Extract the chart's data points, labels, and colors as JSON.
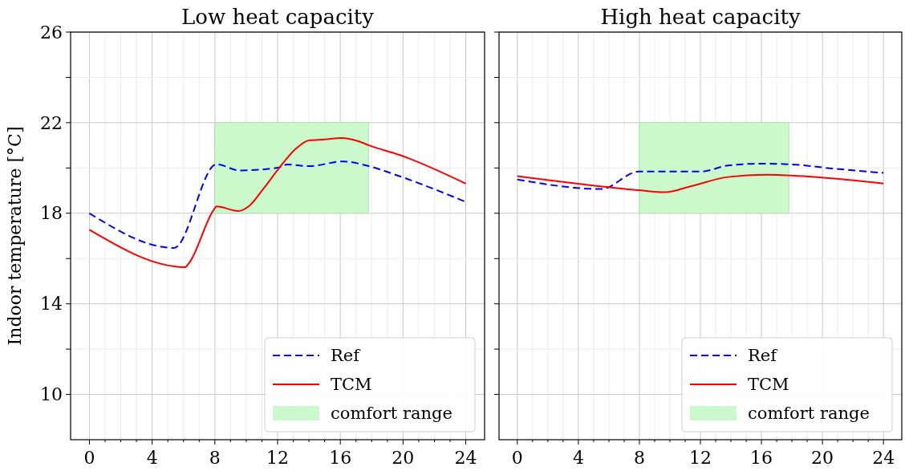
{
  "chart_data": [
    {
      "type": "line",
      "title": "Low heat capacity",
      "ylabel": "Indoor temperature [°C]",
      "xlim": [
        -1.2,
        25.2
      ],
      "ylim": [
        8,
        26
      ],
      "xticks": [
        0,
        {
          "value": 1,
          "label": null
        },
        {
          "value": 2,
          "label": null
        },
        {
          "value": 3,
          "label": null
        },
        4,
        {
          "value": 5,
          "label": null
        },
        {
          "value": 6,
          "label": null
        },
        {
          "value": 7,
          "label": null
        },
        8,
        {
          "value": 9,
          "label": null
        },
        {
          "value": 10,
          "label": null
        },
        {
          "value": 11,
          "label": null
        },
        12,
        {
          "value": 13,
          "label": null
        },
        {
          "value": 14,
          "label": null
        },
        {
          "value": 15,
          "label": null
        },
        16,
        {
          "value": 17,
          "label": null
        },
        {
          "value": 18,
          "label": null
        },
        {
          "value": 19,
          "label": null
        },
        20,
        {
          "value": 21,
          "label": null
        },
        {
          "value": 22,
          "label": null
        },
        {
          "value": 23,
          "label": null
        },
        24
      ],
      "yticks": [
        10,
        {
          "value": 12,
          "label": null
        },
        14,
        {
          "value": 16,
          "label": null
        },
        18,
        {
          "value": 20,
          "label": null
        },
        22,
        {
          "value": 24,
          "label": null
        },
        26
      ],
      "grid": true,
      "legend": "bottom right",
      "series": [
        {
          "name": "Ref",
          "color": "#0000ff",
          "line_style": "dashed",
          "x": [
            0,
            5.4,
            8.1,
            9.6,
            12.1,
            12.6,
            14,
            16.2,
            17.6,
            19.8,
            24
          ],
          "values": [
            18.0,
            16.47,
            20.16,
            19.89,
            20.02,
            20.15,
            20.08,
            20.29,
            20.12,
            19.63,
            18.5
          ]
        },
        {
          "name": "TCM",
          "color": "#ff0000",
          "line_style": "solid",
          "x": [
            0,
            6.1,
            6.35,
            7.9,
            8.1,
            9.5,
            10.2,
            11.05,
            12.1,
            13.1,
            14,
            15,
            16.1,
            17.1,
            17.9,
            19.8,
            24
          ],
          "values": [
            17.27,
            15.62,
            15.8,
            18.12,
            18.3,
            18.1,
            18.33,
            19.04,
            20.0,
            20.81,
            21.22,
            21.26,
            21.32,
            21.19,
            20.98,
            20.57,
            19.31
          ]
        },
        {
          "name": "comfort range",
          "type": "area",
          "color": "#ccf9cc",
          "x": [
            8,
            17.8
          ],
          "values": [
            null,
            null
          ],
          "upper": [
            22,
            22
          ],
          "lower": [
            18,
            18
          ]
        }
      ]
    },
    {
      "type": "line",
      "title": "High heat capacity",
      "xlim": [
        -1.2,
        25.2
      ],
      "ylim": [
        8,
        26
      ],
      "tick_labels": "x",
      "xticks": [
        0,
        {
          "value": 1,
          "label": null
        },
        {
          "value": 2,
          "label": null
        },
        {
          "value": 3,
          "label": null
        },
        4,
        {
          "value": 5,
          "label": null
        },
        {
          "value": 6,
          "label": null
        },
        {
          "value": 7,
          "label": null
        },
        8,
        {
          "value": 9,
          "label": null
        },
        {
          "value": 10,
          "label": null
        },
        {
          "value": 11,
          "label": null
        },
        12,
        {
          "value": 13,
          "label": null
        },
        {
          "value": 14,
          "label": null
        },
        {
          "value": 15,
          "label": null
        },
        16,
        {
          "value": 17,
          "label": null
        },
        {
          "value": 18,
          "label": null
        },
        {
          "value": 19,
          "label": null
        },
        20,
        {
          "value": 21,
          "label": null
        },
        {
          "value": 22,
          "label": null
        },
        {
          "value": 23,
          "label": null
        },
        24
      ],
      "yticks": [
        {
          "value": 10,
          "label": null
        },
        {
          "value": 12,
          "label": null
        },
        {
          "value": 14,
          "label": null
        },
        {
          "value": 16,
          "label": null
        },
        {
          "value": 18,
          "label": null
        },
        {
          "value": 20,
          "label": null
        },
        {
          "value": 22,
          "label": null
        },
        {
          "value": 24,
          "label": null
        },
        {
          "value": 26,
          "label": null
        }
      ],
      "grid": true,
      "legend": "bottom right",
      "series": [
        {
          "name": "Ref",
          "color": "#0000ff",
          "line_style": "dashed",
          "x": [
            0,
            5.5,
            7.95,
            12.05,
            13.8,
            16,
            17.9,
            20.6,
            24
          ],
          "values": [
            19.49,
            19.07,
            19.84,
            19.84,
            20.11,
            20.19,
            20.16,
            19.98,
            19.78
          ]
        },
        {
          "name": "TCM",
          "color": "#ff0000",
          "line_style": "solid",
          "x": [
            0,
            5.7,
            7.95,
            9.66,
            11.4,
            13.8,
            16.3,
            18.9,
            24
          ],
          "values": [
            19.64,
            19.17,
            19.02,
            18.93,
            19.2,
            19.6,
            19.7,
            19.63,
            19.31
          ]
        },
        {
          "name": "comfort range",
          "type": "area",
          "color": "#ccf9cc",
          "x": [
            8,
            17.8
          ],
          "values": [
            null,
            null
          ],
          "upper": [
            22,
            22
          ],
          "lower": [
            18,
            18
          ]
        }
      ]
    }
  ]
}
